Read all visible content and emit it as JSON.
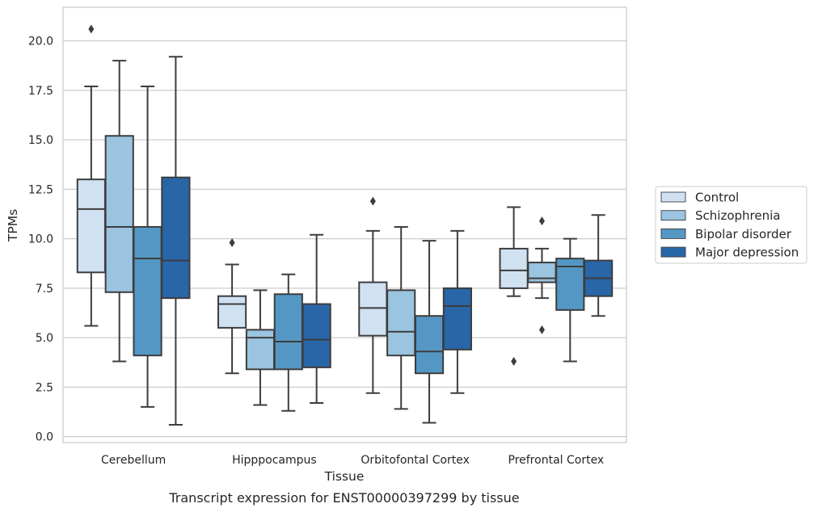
{
  "chart_data": {
    "type": "box",
    "title": "",
    "caption": "Transcript expression for ENST00000397299 by tissue",
    "xlabel": "Tissue",
    "ylabel": "TPMs",
    "ylim": [
      -0.3,
      21.7
    ],
    "yticks": [
      "0.0",
      "2.5",
      "5.0",
      "7.5",
      "10.0",
      "12.5",
      "15.0",
      "17.5",
      "20.0"
    ],
    "grid": "horizontal",
    "legend_position": "right",
    "categories": [
      "Cerebellum",
      "Hipppocampus",
      "Orbitofontal Cortex",
      "Prefrontal Cortex"
    ],
    "series": [
      {
        "name": "Control",
        "color": "#d0e1f2",
        "boxes": [
          {
            "whislo": 5.6,
            "q1": 8.3,
            "med": 11.5,
            "q3": 13.0,
            "whishi": 17.7,
            "fliers": [
              20.6
            ]
          },
          {
            "whislo": 3.2,
            "q1": 5.5,
            "med": 6.7,
            "q3": 7.1,
            "whishi": 8.7,
            "fliers": [
              9.8
            ]
          },
          {
            "whislo": 2.2,
            "q1": 5.1,
            "med": 6.5,
            "q3": 7.8,
            "whishi": 10.4,
            "fliers": [
              11.9
            ]
          },
          {
            "whislo": 7.1,
            "q1": 7.5,
            "med": 8.4,
            "q3": 9.5,
            "whishi": 11.6,
            "fliers": [
              3.8
            ]
          }
        ]
      },
      {
        "name": "Schizophrenia",
        "color": "#9ac4df",
        "boxes": [
          {
            "whislo": 3.8,
            "q1": 7.3,
            "med": 10.6,
            "q3": 15.2,
            "whishi": 19.0,
            "fliers": []
          },
          {
            "whislo": 1.6,
            "q1": 3.4,
            "med": 5.0,
            "q3": 5.4,
            "whishi": 7.4,
            "fliers": []
          },
          {
            "whislo": 1.4,
            "q1": 4.1,
            "med": 5.3,
            "q3": 7.4,
            "whishi": 10.6,
            "fliers": []
          },
          {
            "whislo": 7.0,
            "q1": 7.8,
            "med": 8.0,
            "q3": 8.8,
            "whishi": 9.5,
            "fliers": [
              10.9,
              5.4
            ]
          }
        ]
      },
      {
        "name": "Bipolar disorder",
        "color": "#5597c4",
        "boxes": [
          {
            "whislo": 1.5,
            "q1": 4.1,
            "med": 9.0,
            "q3": 10.6,
            "whishi": 17.7,
            "fliers": []
          },
          {
            "whislo": 1.3,
            "q1": 3.4,
            "med": 4.8,
            "q3": 7.2,
            "whishi": 8.2,
            "fliers": []
          },
          {
            "whislo": 0.7,
            "q1": 3.2,
            "med": 4.3,
            "q3": 6.1,
            "whishi": 9.9,
            "fliers": []
          },
          {
            "whislo": 3.8,
            "q1": 6.4,
            "med": 8.6,
            "q3": 9.0,
            "whishi": 10.0,
            "fliers": []
          }
        ]
      },
      {
        "name": "Major depression",
        "color": "#2866a7",
        "boxes": [
          {
            "whislo": 0.6,
            "q1": 7.0,
            "med": 8.9,
            "q3": 13.1,
            "whishi": 19.2,
            "fliers": []
          },
          {
            "whislo": 1.7,
            "q1": 3.5,
            "med": 4.9,
            "q3": 6.7,
            "whishi": 10.2,
            "fliers": []
          },
          {
            "whislo": 2.2,
            "q1": 4.4,
            "med": 6.6,
            "q3": 7.5,
            "whishi": 10.4,
            "fliers": []
          },
          {
            "whislo": 6.1,
            "q1": 7.1,
            "med": 8.0,
            "q3": 8.9,
            "whishi": 11.2,
            "fliers": []
          }
        ]
      }
    ]
  },
  "colors": {
    "grid": "#cccccc",
    "axes_frame": "#cccccc",
    "line": "#3d3d3d",
    "text": "#262626"
  }
}
